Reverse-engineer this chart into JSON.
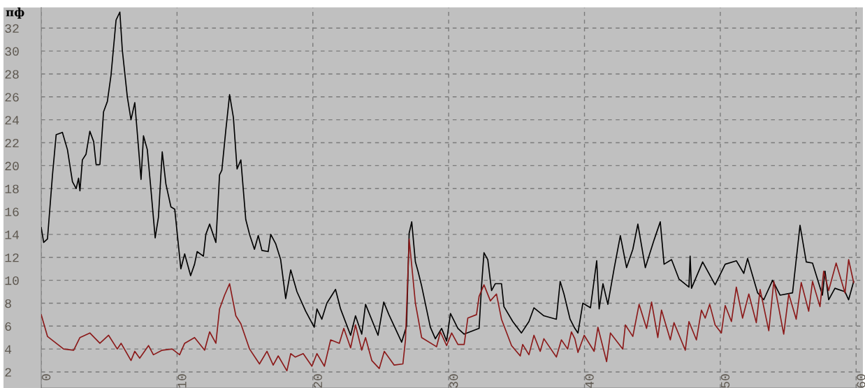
{
  "chart_data": {
    "type": "line",
    "ylabel": "пф",
    "xlim": [
      0,
      60.5
    ],
    "ylim": [
      0.6,
      33.8
    ],
    "xticks": [
      0,
      10,
      20,
      30,
      40,
      50,
      60
    ],
    "yticks": [
      2,
      4,
      6,
      8,
      10,
      12,
      14,
      16,
      18,
      20,
      22,
      24,
      26,
      28,
      30,
      32
    ],
    "grid": true,
    "line_style": "solid",
    "marker": "none",
    "series": [
      {
        "color": "#000000",
        "x": [
          0,
          0.18,
          0.46,
          0.83,
          1.1,
          1.56,
          1.93,
          2.3,
          2.57,
          2.75,
          2.85,
          3.03,
          3.3,
          3.58,
          3.86,
          4.04,
          4.32,
          4.59,
          4.87,
          5.14,
          5.51,
          5.79,
          5.97,
          6.34,
          6.61,
          6.89,
          7.16,
          7.35,
          7.53,
          7.81,
          8.08,
          8.39,
          8.63,
          8.91,
          9.18,
          9.55,
          9.83,
          10.28,
          10.56,
          11.0,
          11.29,
          11.48,
          11.94,
          12.12,
          12.4,
          12.86,
          13.13,
          13.3,
          13.6,
          13.87,
          14.15,
          14.42,
          14.7,
          15.06,
          15.34,
          15.7,
          15.98,
          16.25,
          16.71,
          16.9,
          17.26,
          17.63,
          18.0,
          18.37,
          18.83,
          19.47,
          20.1,
          20.3,
          20.66,
          21.03,
          21.67,
          22.04,
          22.78,
          23.14,
          23.6,
          23.88,
          24.8,
          25.22,
          25.6,
          26.54,
          26.9,
          27.09,
          27.28,
          27.55,
          27.74,
          28.01,
          28.65,
          29.02,
          29.48,
          29.85,
          30.13,
          30.68,
          31.14,
          32.24,
          32.42,
          32.6,
          32.88,
          33.16,
          33.43,
          33.89,
          34.07,
          34.72,
          35.36,
          35.91,
          36.28,
          37.01,
          37.93,
          38.21,
          38.49,
          38.94,
          39.29,
          39.52,
          39.88,
          40.44,
          40.9,
          41.08,
          41.36,
          41.72,
          42.18,
          42.64,
          43.1,
          43.56,
          43.93,
          44.48,
          45.12,
          45.58,
          45.86,
          46.41,
          46.96,
          47.69,
          47.78,
          47.88,
          48.7,
          49.62,
          50.36,
          51.18,
          51.73,
          52.01,
          52.75,
          53.2,
          53.85,
          54.4,
          55.32,
          55.87,
          56.33,
          56.79,
          57.52,
          57.71,
          57.98,
          58.44,
          59.18,
          59.45,
          59.82
        ],
        "values": [
          14.6,
          13.3,
          13.6,
          19.2,
          22.7,
          22.9,
          21.4,
          18.6,
          18.0,
          18.9,
          17.8,
          20.5,
          21.0,
          23.0,
          22.1,
          20.1,
          20.1,
          24.7,
          25.6,
          27.9,
          32.7,
          33.4,
          30.1,
          26.0,
          24.0,
          25.5,
          21.6,
          18.8,
          22.6,
          21.4,
          17.9,
          13.7,
          15.5,
          21.2,
          18.4,
          16.4,
          16.2,
          11.0,
          12.3,
          10.4,
          11.4,
          12.5,
          12.1,
          14.0,
          14.9,
          13.3,
          19.2,
          19.6,
          23.2,
          26.2,
          24.2,
          19.7,
          20.5,
          15.3,
          14.0,
          12.7,
          13.9,
          12.6,
          12.5,
          14.0,
          13.2,
          11.8,
          8.4,
          10.9,
          9.0,
          7.3,
          5.9,
          7.5,
          6.6,
          8.0,
          9.2,
          7.5,
          5.2,
          6.9,
          5.3,
          7.9,
          5.2,
          8.1,
          7.0,
          4.6,
          6.0,
          14.1,
          15.1,
          11.6,
          10.8,
          9.5,
          5.9,
          4.9,
          5.8,
          4.7,
          7.1,
          5.8,
          5.3,
          5.8,
          9.5,
          12.4,
          11.8,
          9.1,
          9.7,
          9.7,
          7.7,
          6.4,
          5.4,
          6.4,
          7.6,
          6.9,
          6.6,
          9.9,
          8.8,
          6.6,
          5.8,
          5.4,
          8.0,
          7.6,
          11.7,
          7.5,
          9.7,
          7.9,
          11.0,
          13.9,
          11.1,
          12.7,
          14.9,
          11.1,
          13.5,
          15.1,
          11.4,
          11.8,
          10.1,
          9.4,
          12.1,
          9.3,
          11.6,
          9.6,
          11.4,
          11.7,
          10.6,
          11.9,
          8.9,
          8.3,
          10.0,
          8.7,
          8.9,
          14.8,
          11.6,
          11.5,
          8.7,
          10.8,
          8.3,
          9.3,
          9.0,
          8.3,
          9.9
        ]
      },
      {
        "color": "#8b1a1a",
        "x": [
          0,
          0.46,
          1.65,
          2.39,
          2.85,
          3.58,
          4.32,
          4.96,
          5.6,
          5.88,
          6.61,
          6.89,
          7.25,
          7.9,
          8.26,
          8.91,
          9.64,
          10.19,
          10.56,
          11.29,
          12.03,
          12.4,
          12.86,
          13.13,
          13.5,
          13.87,
          14.33,
          14.7,
          15.34,
          16.07,
          16.62,
          17.08,
          17.45,
          18.09,
          18.37,
          18.7,
          19.29,
          19.93,
          20.3,
          20.85,
          21.31,
          21.95,
          22.28,
          22.78,
          23.14,
          23.6,
          23.88,
          24.34,
          24.89,
          25.26,
          25.99,
          26.63,
          26.82,
          27.09,
          27.55,
          28.01,
          29.11,
          29.39,
          29.85,
          30.22,
          30.68,
          31.14,
          31.41,
          32.05,
          32.24,
          32.6,
          33.07,
          33.52,
          33.89,
          34.63,
          35.27,
          35.45,
          35.91,
          36.28,
          36.74,
          37.01,
          37.93,
          38.3,
          38.76,
          39.04,
          39.29,
          39.52,
          39.98,
          40.71,
          40.99,
          41.63,
          41.91,
          42.82,
          43.01,
          43.56,
          44.02,
          44.57,
          44.94,
          45.4,
          45.67,
          46.32,
          46.59,
          47.42,
          47.69,
          48.24,
          48.61,
          48.89,
          49.22,
          49.62,
          50.08,
          50.36,
          50.82,
          51.18,
          51.64,
          52.1,
          52.65,
          52.93,
          53.57,
          53.94,
          54.67,
          55.04,
          55.59,
          55.96,
          56.51,
          56.79,
          57.34,
          57.61,
          57.98,
          58.53,
          59.18,
          59.45,
          59.82
        ],
        "values": [
          7.0,
          5.1,
          4.0,
          3.9,
          5.0,
          5.4,
          4.5,
          5.2,
          4.0,
          4.5,
          3.0,
          3.8,
          3.2,
          4.3,
          3.5,
          3.9,
          4.0,
          3.5,
          4.5,
          5.0,
          3.9,
          5.5,
          4.5,
          7.5,
          8.7,
          9.7,
          6.9,
          6.2,
          4.0,
          2.7,
          3.8,
          2.6,
          3.4,
          2.1,
          3.6,
          3.3,
          3.6,
          2.5,
          3.6,
          2.5,
          4.8,
          4.5,
          5.8,
          4.1,
          6.1,
          3.9,
          5.0,
          3.0,
          2.3,
          3.8,
          2.6,
          2.7,
          4.8,
          13.6,
          8.0,
          5.0,
          4.2,
          5.5,
          4.3,
          5.4,
          4.4,
          4.4,
          6.7,
          7.0,
          8.6,
          9.6,
          8.2,
          8.8,
          6.6,
          4.3,
          3.4,
          4.4,
          3.5,
          5.2,
          3.8,
          4.9,
          3.3,
          4.8,
          4.0,
          5.5,
          4.9,
          3.7,
          5.2,
          3.8,
          5.9,
          2.9,
          5.4,
          4.0,
          6.1,
          5.1,
          7.9,
          5.8,
          8.1,
          5.0,
          7.4,
          4.8,
          6.3,
          3.9,
          6.4,
          4.8,
          7.4,
          6.7,
          7.9,
          6.1,
          5.4,
          7.8,
          6.4,
          9.4,
          6.7,
          8.8,
          6.3,
          9.2,
          5.6,
          9.9,
          5.3,
          8.8,
          6.6,
          9.8,
          7.3,
          9.9,
          7.7,
          10.8,
          9.1,
          11.5,
          8.9,
          11.8,
          9.8
        ]
      }
    ]
  }
}
